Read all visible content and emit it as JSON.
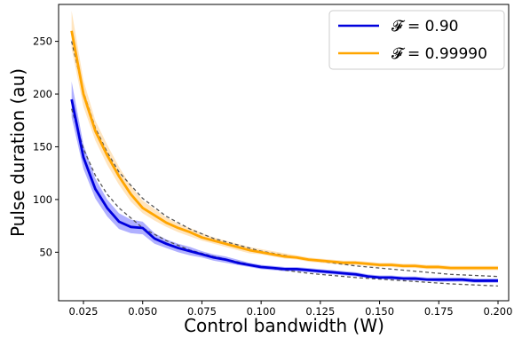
{
  "chart_data": {
    "type": "line",
    "title": "",
    "xlabel": "Control bandwidth (W)",
    "ylabel": "Pulse duration (au)",
    "xlim": [
      0.0145,
      0.2045
    ],
    "ylim": [
      4,
      285
    ],
    "x_ticks": [
      0.025,
      0.05,
      0.075,
      0.1,
      0.125,
      0.15,
      0.175,
      0.2
    ],
    "x_tick_labels": [
      "0.025",
      "0.050",
      "0.075",
      "0.100",
      "0.125",
      "0.150",
      "0.175",
      "0.200"
    ],
    "y_ticks": [
      50,
      100,
      150,
      200,
      250
    ],
    "y_tick_labels": [
      "50",
      "100",
      "150",
      "200",
      "250"
    ],
    "grid": false,
    "legend_position": "top-right",
    "x": [
      0.02,
      0.025,
      0.03,
      0.035,
      0.04,
      0.045,
      0.05,
      0.055,
      0.06,
      0.065,
      0.07,
      0.075,
      0.08,
      0.085,
      0.09,
      0.095,
      0.1,
      0.105,
      0.11,
      0.115,
      0.12,
      0.125,
      0.13,
      0.135,
      0.14,
      0.145,
      0.15,
      0.155,
      0.16,
      0.165,
      0.17,
      0.175,
      0.18,
      0.185,
      0.19,
      0.195,
      0.2
    ],
    "fit_x": [
      0.02,
      0.025,
      0.03,
      0.035,
      0.04,
      0.05,
      0.06,
      0.07,
      0.08,
      0.1,
      0.12,
      0.14,
      0.16,
      0.18,
      0.2
    ],
    "series": [
      {
        "name": "𝓕 = 0.90",
        "color": "#0000dd",
        "band_color": "#7070ff",
        "values": [
          195,
          140,
          110,
          92,
          79,
          74,
          73,
          63,
          58,
          54,
          51,
          48,
          45,
          43,
          40,
          38,
          36,
          35,
          34,
          34,
          33,
          32,
          31,
          30,
          29,
          27,
          26,
          26,
          25,
          25,
          24,
          24,
          24,
          24,
          23,
          23,
          23
        ],
        "lower": [
          178,
          129,
          101,
          84,
          72,
          68,
          67,
          58,
          54,
          50,
          47,
          45,
          42,
          40,
          38,
          36,
          34,
          33,
          32,
          32,
          31,
          30,
          29,
          28,
          27,
          26,
          25,
          24,
          24,
          23,
          23,
          22,
          22,
          22,
          21,
          21,
          21
        ],
        "upper": [
          212,
          152,
          120,
          100,
          87,
          81,
          79,
          68,
          62,
          58,
          55,
          51,
          48,
          46,
          43,
          40,
          38,
          37,
          36,
          36,
          35,
          34,
          33,
          32,
          31,
          29,
          28,
          28,
          27,
          27,
          26,
          26,
          26,
          26,
          25,
          25,
          25
        ],
        "fit": [
          186,
          148,
          123,
          105,
          92,
          73,
          61,
          52,
          46,
          36,
          30,
          26,
          23,
          20,
          18
        ]
      },
      {
        "name": "𝓕 = 0.99990",
        "color": "#ffa500",
        "band_color": "#ffcf8a",
        "values": [
          260,
          200,
          165,
          142,
          122,
          105,
          92,
          85,
          78,
          73,
          69,
          64,
          61,
          58,
          55,
          52,
          50,
          48,
          46,
          45,
          43,
          42,
          41,
          40,
          40,
          39,
          38,
          38,
          37,
          37,
          36,
          36,
          35,
          35,
          35,
          35,
          35
        ],
        "lower": [
          243,
          188,
          156,
          133,
          114,
          98,
          87,
          80,
          74,
          69,
          65,
          61,
          58,
          55,
          52,
          49,
          48,
          46,
          44,
          43,
          41,
          40,
          39,
          38,
          38,
          37,
          36,
          36,
          35,
          35,
          34,
          34,
          33,
          33,
          33,
          33,
          33
        ],
        "upper": [
          279,
          213,
          175,
          152,
          131,
          113,
          99,
          91,
          83,
          77,
          73,
          68,
          64,
          61,
          58,
          55,
          53,
          51,
          49,
          47,
          45,
          44,
          43,
          42,
          42,
          41,
          40,
          40,
          39,
          39,
          38,
          38,
          37,
          37,
          37,
          37,
          37
        ],
        "fit": [
          250,
          202,
          168,
          145,
          126,
          101,
          84,
          72,
          63,
          51,
          43,
          37,
          33,
          29,
          27
        ]
      }
    ]
  }
}
